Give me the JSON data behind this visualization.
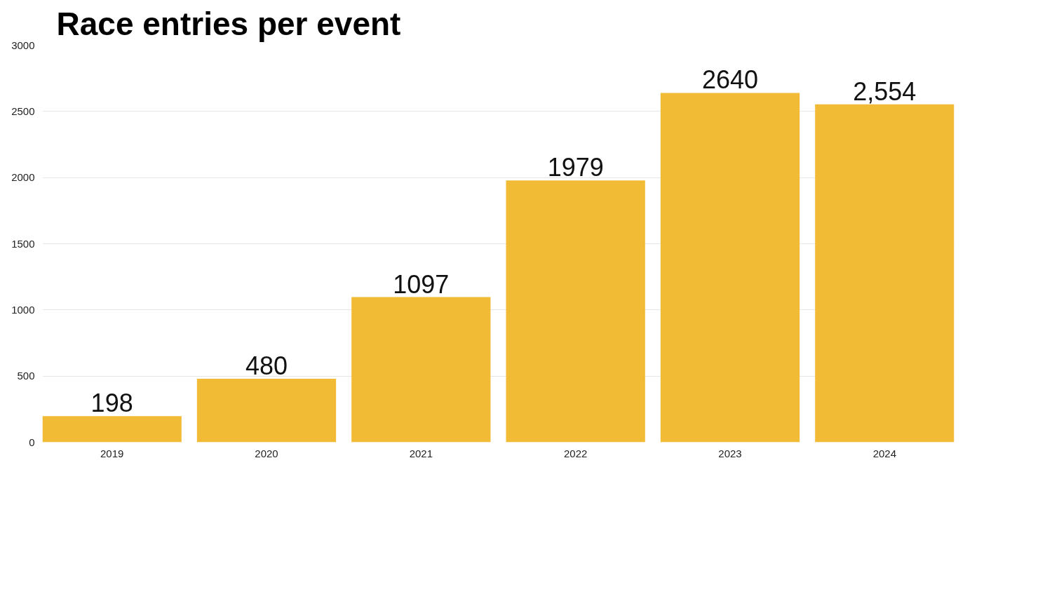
{
  "chart_data": {
    "type": "bar",
    "title": "Race entries per event",
    "categories": [
      "2019",
      "2020",
      "2021",
      "2022",
      "2023",
      "2024"
    ],
    "values": [
      198,
      480,
      1097,
      1979,
      2640,
      2554
    ],
    "value_labels": [
      "198",
      "480",
      "1097",
      "1979",
      "2640",
      "2,554"
    ],
    "color": "#f2bb35",
    "ylim": [
      0,
      3000
    ],
    "yticks": [
      0,
      500,
      1000,
      1500,
      2000,
      2500,
      3000
    ],
    "grid": "y"
  }
}
